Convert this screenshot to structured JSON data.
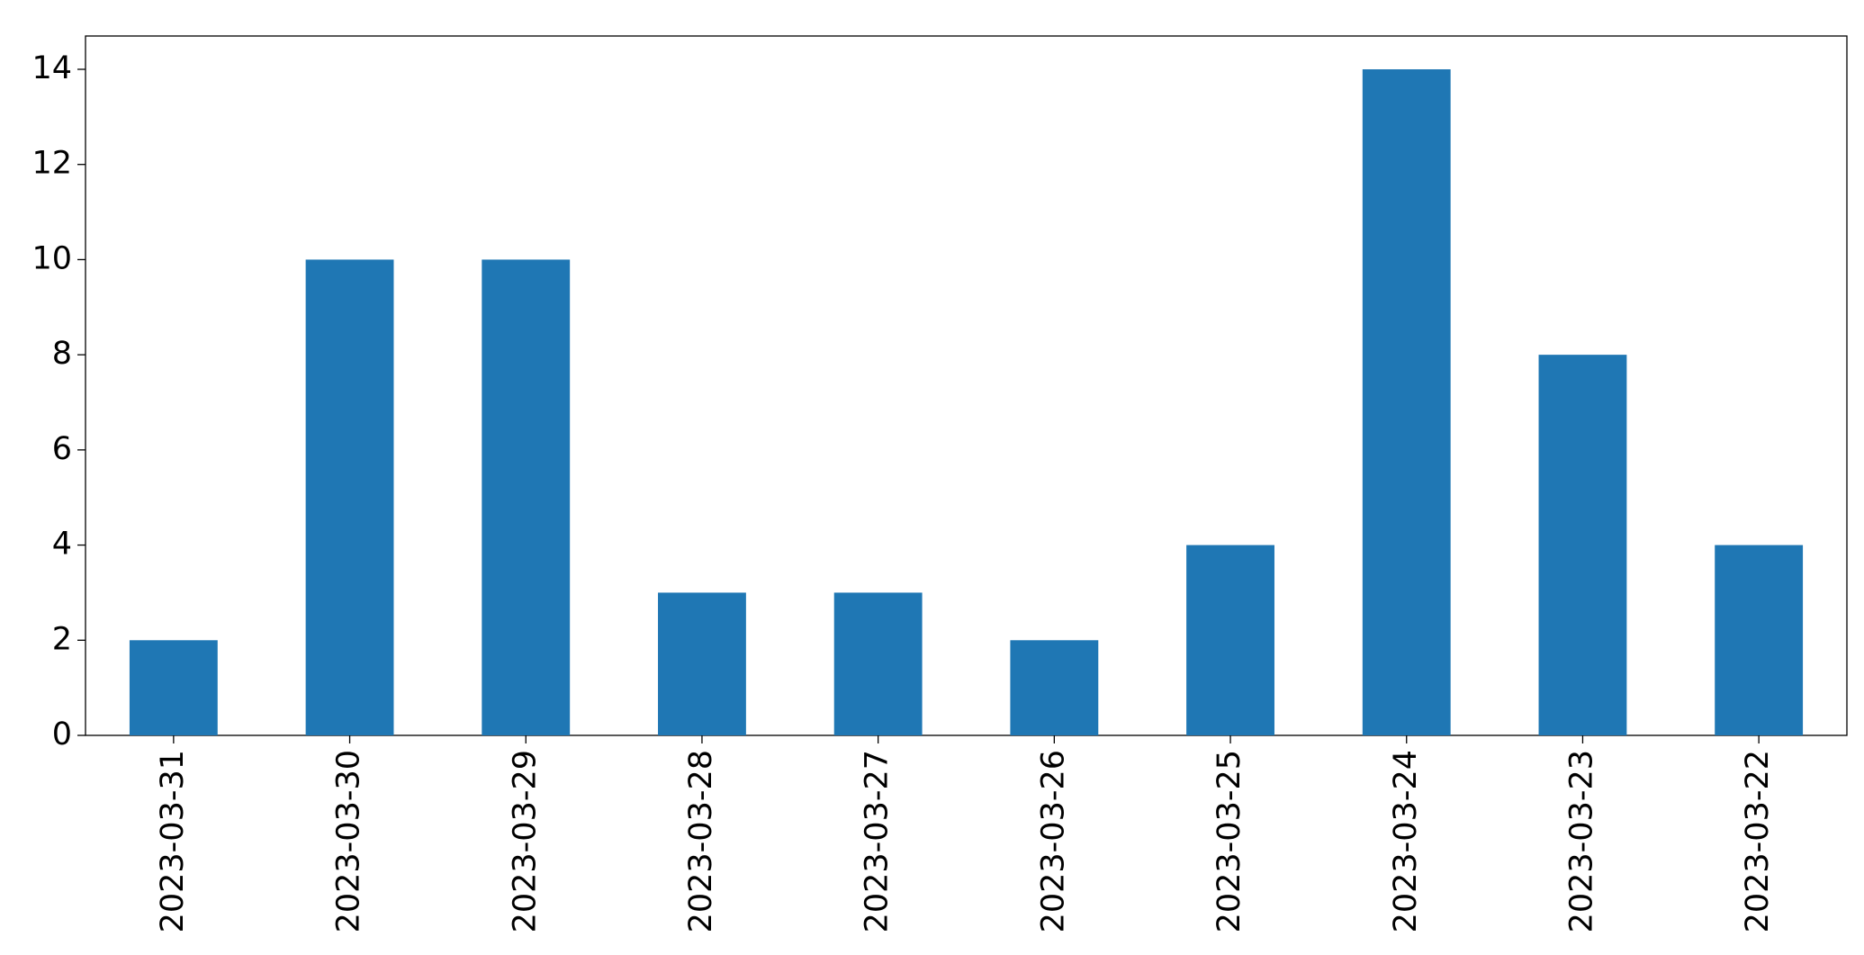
{
  "chart_data": {
    "type": "bar",
    "categories": [
      "2023-03-31",
      "2023-03-30",
      "2023-03-29",
      "2023-03-28",
      "2023-03-27",
      "2023-03-26",
      "2023-03-25",
      "2023-03-24",
      "2023-03-23",
      "2023-03-22"
    ],
    "values": [
      2,
      10,
      10,
      3,
      3,
      2,
      4,
      14,
      8,
      4
    ],
    "color": "#1f77b4",
    "ylim": [
      0,
      14.7
    ],
    "yticks": [
      0,
      2,
      4,
      6,
      8,
      10,
      12,
      14
    ],
    "grid": false
  }
}
